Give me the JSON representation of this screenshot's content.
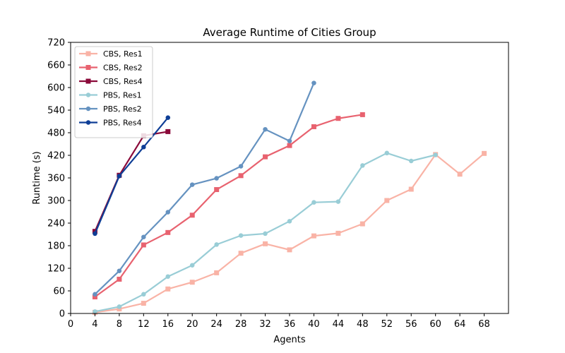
{
  "chart_data": {
    "type": "line",
    "title": "Average Runtime of Cities Group",
    "xlabel": "Agents",
    "ylabel": "Runtime (s)",
    "xlim": [
      0,
      72
    ],
    "ylim": [
      0,
      720
    ],
    "xticks": [
      0,
      4,
      8,
      12,
      16,
      20,
      24,
      28,
      32,
      36,
      40,
      44,
      48,
      52,
      56,
      60,
      64,
      68
    ],
    "yticks": [
      0,
      60,
      120,
      180,
      240,
      300,
      360,
      420,
      480,
      540,
      600,
      660,
      720
    ],
    "grid": false,
    "legend_position": "upper-left",
    "series": [
      {
        "name": "CBS, Res1",
        "color": "#f9b3a6",
        "marker": "square",
        "x": [
          4,
          8,
          12,
          16,
          20,
          24,
          28,
          32,
          36,
          40,
          44,
          48,
          52,
          56,
          60,
          64,
          68
        ],
        "y": [
          3,
          12,
          27,
          65,
          83,
          108,
          160,
          185,
          169,
          206,
          213,
          238,
          300,
          330,
          422,
          370,
          425
        ]
      },
      {
        "name": "CBS, Res2",
        "color": "#e8626f",
        "marker": "square",
        "x": [
          4,
          8,
          12,
          16,
          20,
          24,
          28,
          32,
          36,
          40,
          44,
          48
        ],
        "y": [
          44,
          91,
          182,
          215,
          261,
          329,
          366,
          416,
          446,
          496,
          518,
          528
        ]
      },
      {
        "name": "CBS, Res4",
        "color": "#8b0a3a",
        "marker": "square",
        "x": [
          4,
          8,
          12,
          16
        ],
        "y": [
          218,
          367,
          472,
          483
        ]
      },
      {
        "name": "PBS, Res1",
        "color": "#99cdd6",
        "marker": "circle",
        "x": [
          4,
          8,
          12,
          16,
          20,
          24,
          28,
          32,
          36,
          40,
          44,
          48,
          52,
          56,
          60
        ],
        "y": [
          5,
          18,
          51,
          98,
          128,
          183,
          207,
          212,
          245,
          295,
          297,
          393,
          426,
          405,
          421
        ]
      },
      {
        "name": "PBS, Res2",
        "color": "#6592c0",
        "marker": "circle",
        "x": [
          4,
          8,
          12,
          16,
          20,
          24,
          28,
          32,
          36,
          40
        ],
        "y": [
          51,
          113,
          203,
          269,
          342,
          359,
          391,
          489,
          458,
          612
        ]
      },
      {
        "name": "PBS, Res4",
        "color": "#0e3e96",
        "marker": "circle",
        "x": [
          4,
          8,
          12,
          16
        ],
        "y": [
          212,
          365,
          442,
          520
        ]
      }
    ]
  }
}
